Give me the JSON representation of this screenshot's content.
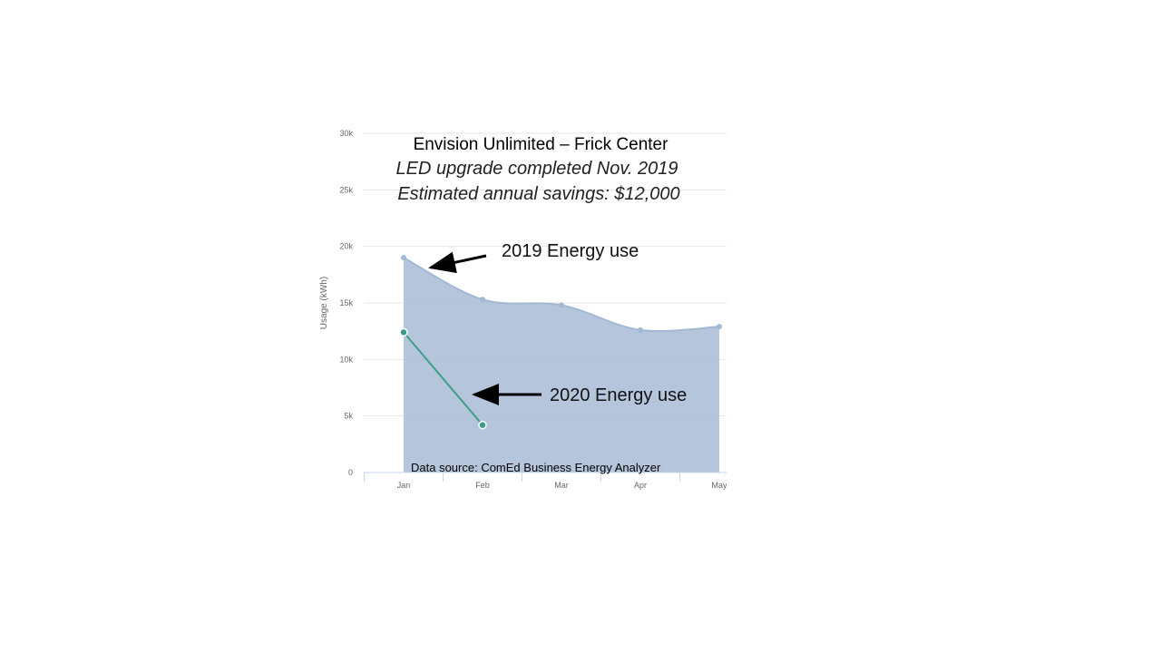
{
  "chart_data": {
    "type": "area",
    "title": "Envision Unlimited – Frick Center",
    "subtitle": [
      "LED upgrade completed Nov. 2019",
      "Estimated annual savings: $12,000"
    ],
    "annotations": [
      "2019 Energy use",
      "2020 Energy use"
    ],
    "source": "Data source: ComEd  Business Energy Analyzer",
    "y_label": "Usage (kWh)",
    "categories": [
      "Jan",
      "Feb",
      "Mar",
      "Apr",
      "May"
    ],
    "series": [
      {
        "name": "2019",
        "color": "#a3b8d3",
        "values": [
          19000,
          15300,
          14800,
          12600,
          12900
        ]
      },
      {
        "name": "2020",
        "color": "#3a9e86",
        "values": [
          12400,
          4200,
          null,
          null,
          null
        ]
      }
    ],
    "ylim": [
      0,
      30000
    ],
    "yticks": [
      0,
      {
        "value": 5000,
        "label": "5k"
      },
      {
        "value": 10000,
        "label": "10k"
      },
      {
        "value": 15000,
        "label": "15k"
      },
      {
        "value": 20000,
        "label": "20k"
      },
      {
        "value": 25000,
        "label": "25k"
      },
      {
        "value": 30000,
        "label": "30k"
      }
    ],
    "grid": true
  }
}
